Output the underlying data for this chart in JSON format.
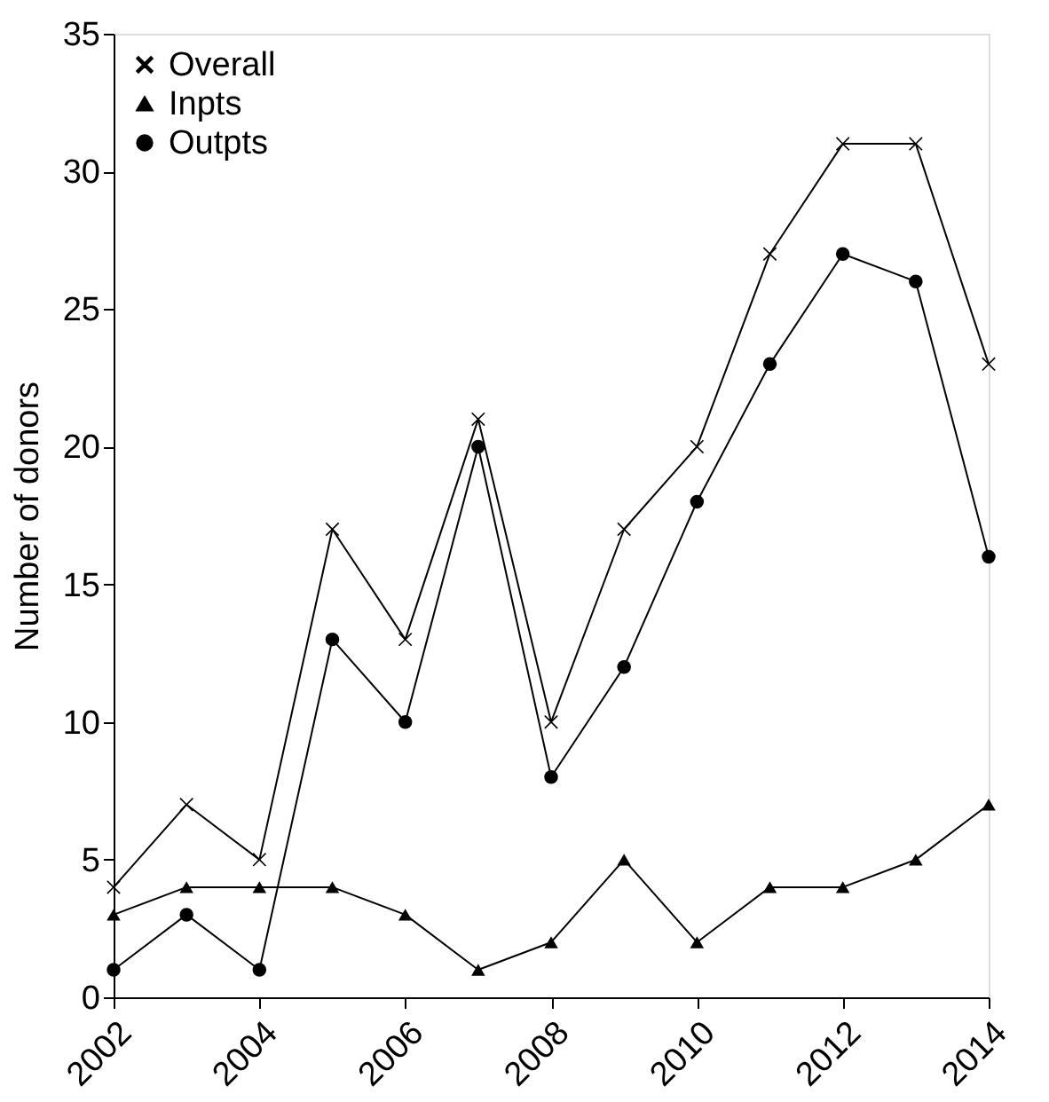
{
  "chart_data": {
    "type": "line",
    "ylabel": "Number of donors",
    "x": [
      2002,
      2003,
      2004,
      2005,
      2006,
      2007,
      2008,
      2009,
      2010,
      2011,
      2012,
      2013,
      2014
    ],
    "xlim": [
      2002,
      2014
    ],
    "xticks": [
      2002,
      2004,
      2006,
      2008,
      2010,
      2012,
      2014
    ],
    "ylim": [
      0,
      35
    ],
    "yticks": [
      0,
      5,
      10,
      15,
      20,
      25,
      30,
      35
    ],
    "grid": false,
    "legend": "top left",
    "line_style": "solid",
    "series": [
      {
        "name": "Overall",
        "color": "#000000",
        "marker": "cross",
        "values": [
          4,
          7,
          5,
          17,
          13,
          21,
          10,
          17,
          20,
          27,
          31,
          31,
          23
        ]
      },
      {
        "name": "Inpts",
        "color": "#000000",
        "marker": "triangle",
        "values": [
          3,
          4,
          4,
          4,
          3,
          1,
          2,
          5,
          2,
          4,
          4,
          5,
          7
        ]
      },
      {
        "name": "Outpts",
        "color": "#000000",
        "marker": "circle",
        "values": [
          1,
          3,
          1,
          13,
          10,
          20,
          8,
          12,
          18,
          23,
          27,
          26,
          16
        ]
      }
    ]
  }
}
